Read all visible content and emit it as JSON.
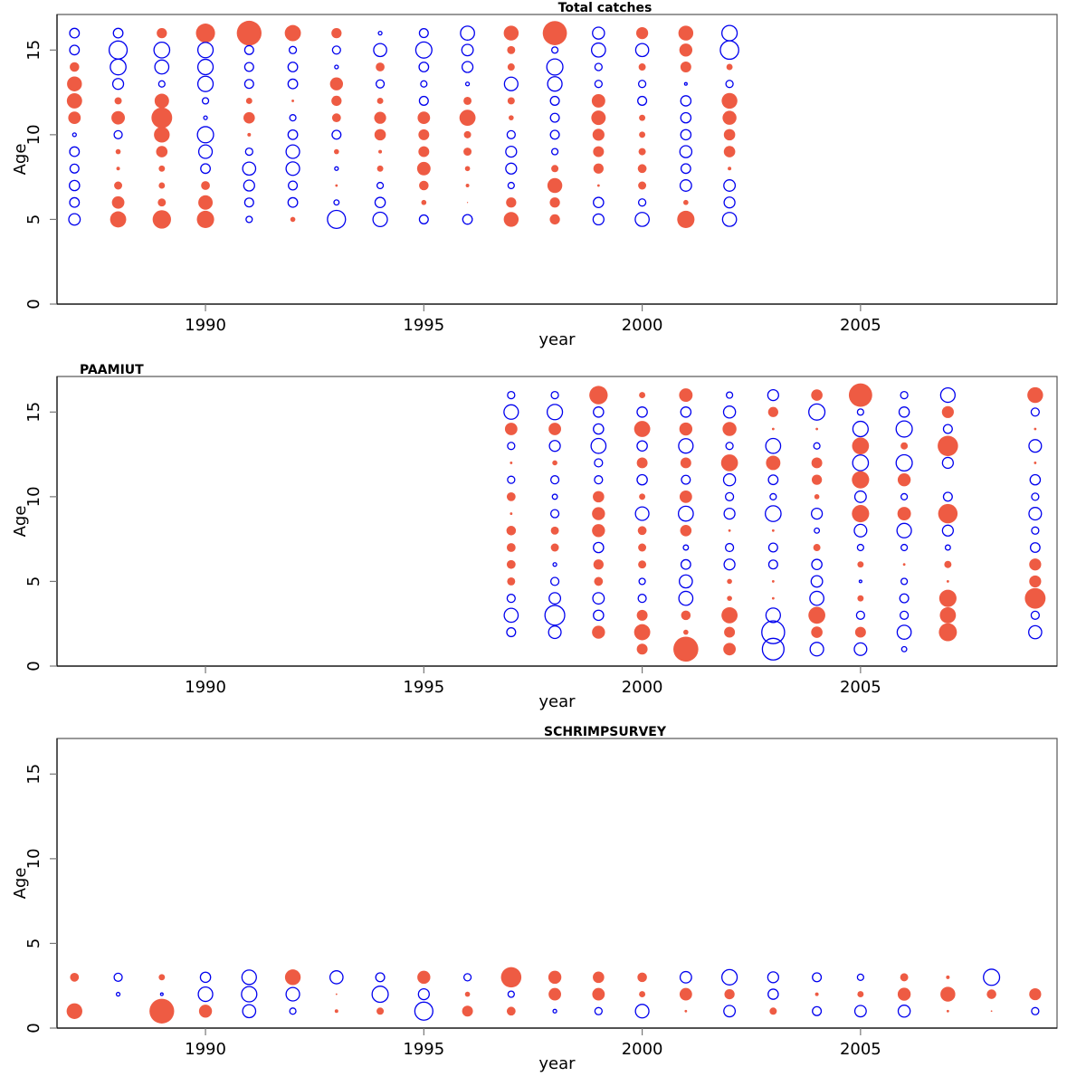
{
  "colors": {
    "positive": "#0000ee",
    "negative": "#ee5b43"
  },
  "chart_data": [
    {
      "type": "scatter",
      "subtype": "bubble",
      "title": "Total catches",
      "title_align": "center",
      "xlabel": "year",
      "ylabel": "Age",
      "xlim": [
        1986.6,
        2009.5
      ],
      "ylim": [
        0,
        17.1
      ],
      "xticks": [
        1990,
        1995,
        2000,
        2005
      ],
      "yticks": [
        0,
        5,
        10,
        15
      ],
      "legend": "none",
      "encoding": "blue open circle = positive residual, red filled circle = negative residual; area proportional to |residual|",
      "ages": [
        16,
        15,
        14,
        13,
        12,
        11,
        10,
        9,
        8,
        7,
        6,
        5
      ],
      "years": [
        1987,
        1988,
        1989,
        1990,
        1991,
        1992,
        1993,
        1994,
        1995,
        1996,
        1997,
        1998,
        1999,
        2000,
        2001,
        2002
      ],
      "residuals": [
        [
          0.7,
          0.7,
          -0.7,
          -1.7,
          -1.8,
          -1.2,
          0.1,
          0.7,
          0.6,
          0.8,
          0.7,
          1.0
        ],
        [
          0.7,
          2.5,
          1.9,
          0.9,
          -0.4,
          -1.4,
          0.5,
          -0.2,
          -0.1,
          -0.5,
          -1.2,
          -2.0
        ],
        [
          -0.8,
          1.9,
          1.5,
          0.3,
          -1.6,
          -3.3,
          -1.9,
          -1.0,
          -0.3,
          -0.3,
          -0.5,
          -2.6
        ],
        [
          -2.8,
          1.8,
          1.8,
          1.8,
          0.3,
          0.1,
          2.0,
          1.4,
          0.7,
          -0.6,
          -1.6,
          -2.3
        ],
        [
          -4.7,
          0.6,
          0.6,
          0.6,
          -0.3,
          -1.0,
          -0.1,
          0.4,
          1.3,
          0.9,
          0.6,
          0.3
        ],
        [
          -2.0,
          0.4,
          0.7,
          0.7,
          -0.05,
          0.3,
          0.7,
          1.4,
          1.4,
          0.6,
          0.7,
          -0.2
        ],
        [
          -0.8,
          0.5,
          0.1,
          -1.3,
          -0.8,
          -0.6,
          0.6,
          -0.2,
          0.1,
          -0.05,
          0.2,
          2.5
        ],
        [
          0.1,
          1.3,
          -0.6,
          0.5,
          -0.3,
          -1.1,
          -1.0,
          -0.1,
          -0.3,
          0.3,
          0.8,
          1.6
        ],
        [
          0.6,
          2.0,
          0.7,
          0.3,
          0.6,
          -1.2,
          -0.9,
          -0.9,
          -1.4,
          -0.7,
          -0.2,
          0.6
        ],
        [
          1.5,
          1.0,
          0.9,
          0.1,
          -0.5,
          -2.0,
          -0.4,
          -0.5,
          -0.2,
          -0.1,
          -0.01,
          0.7
        ],
        [
          -1.7,
          -0.5,
          -0.4,
          1.4,
          -0.4,
          -0.2,
          0.5,
          0.9,
          0.9,
          0.3,
          -0.8,
          -1.7
        ],
        [
          -4.5,
          0.3,
          2.0,
          1.6,
          0.6,
          0.6,
          0.6,
          0.3,
          -0.4,
          -1.7,
          -0.8,
          -0.8
        ],
        [
          1.1,
          1.5,
          0.4,
          0.4,
          -1.4,
          -1.6,
          -1.1,
          -0.9,
          -0.8,
          -0.05,
          0.8,
          0.9
        ],
        [
          -1.1,
          1.3,
          -0.4,
          0.4,
          0.6,
          -0.3,
          -0.3,
          -0.4,
          -0.6,
          -0.5,
          0.4,
          1.5
        ],
        [
          -1.7,
          -1.3,
          -0.9,
          0.05,
          0.8,
          0.8,
          0.8,
          1.1,
          0.7,
          1.0,
          -0.2,
          -2.3
        ],
        [
          1.8,
          2.6,
          -0.3,
          0.4,
          -1.9,
          -1.5,
          -1.0,
          -1.0,
          -0.1,
          1.0,
          0.9,
          1.5
        ]
      ]
    },
    {
      "type": "scatter",
      "subtype": "bubble",
      "title": "PAAMIUT",
      "title_align": "left",
      "xlabel": "year",
      "ylabel": "Age",
      "xlim": [
        1986.6,
        2009.5
      ],
      "ylim": [
        0,
        17.1
      ],
      "xticks": [
        1990,
        1995,
        2000,
        2005
      ],
      "yticks": [
        0,
        5,
        10,
        15
      ],
      "legend": "none",
      "encoding": "blue open circle = positive residual, red filled circle = negative residual; area proportional to |residual|",
      "ages": [
        16,
        15,
        14,
        13,
        12,
        11,
        10,
        9,
        8,
        7,
        6,
        5,
        4,
        3,
        2,
        1
      ],
      "years": [
        1997,
        1998,
        1999,
        2000,
        2001,
        2002,
        2003,
        2004,
        2005,
        2006,
        2007,
        2009
      ],
      "residuals": [
        [
          0.4,
          1.6,
          -1.2,
          0.4,
          -0.05,
          0.4,
          -0.6,
          -0.05,
          -0.7,
          -0.6,
          -0.6,
          -0.5,
          0.5,
          1.5,
          0.6,
          null
        ],
        [
          0.4,
          1.8,
          -1.2,
          0.9,
          -0.2,
          0.5,
          0.2,
          0.5,
          -0.5,
          -0.5,
          0.1,
          0.5,
          1.0,
          3.0,
          1.2,
          null
        ],
        [
          -2.6,
          0.8,
          0.8,
          1.7,
          0.5,
          0.5,
          -1.0,
          -1.3,
          -1.3,
          0.8,
          -0.8,
          -0.6,
          1.0,
          0.8,
          -1.3,
          null
        ],
        [
          -0.3,
          0.8,
          -2.0,
          0.8,
          -0.9,
          0.8,
          -0.3,
          1.4,
          -0.6,
          -0.5,
          -0.5,
          0.3,
          0.5,
          -0.9,
          -2.0,
          -0.9
        ],
        [
          -1.4,
          0.8,
          -1.3,
          1.6,
          -0.9,
          0.6,
          -1.2,
          1.7,
          -1.0,
          0.2,
          0.7,
          1.3,
          1.5,
          -0.7,
          -0.2,
          -4.8
        ],
        [
          0.3,
          1.1,
          -1.5,
          0.4,
          -2.2,
          1.1,
          0.5,
          0.9,
          -0.05,
          0.5,
          0.9,
          -0.2,
          -0.2,
          -2.0,
          -0.9,
          -1.2
        ],
        [
          0.9,
          -0.8,
          -0.05,
          1.7,
          -1.6,
          0.7,
          0.3,
          1.9,
          -0.05,
          0.6,
          0.6,
          -0.05,
          -0.05,
          1.6,
          4.0,
          3.6
        ],
        [
          -1.0,
          2.0,
          -0.05,
          0.3,
          -0.9,
          -0.8,
          -0.2,
          0.9,
          0.2,
          -0.4,
          0.8,
          1.0,
          1.5,
          -2.2,
          -1.0,
          1.4
        ],
        [
          -4.2,
          0.3,
          1.8,
          -2.2,
          1.9,
          -2.3,
          1.0,
          -2.3,
          1.2,
          0.3,
          -0.3,
          0.05,
          -0.3,
          0.5,
          -0.9,
          1.2
        ],
        [
          0.4,
          0.8,
          2.0,
          -0.4,
          2.0,
          -1.3,
          0.3,
          -1.4,
          1.6,
          0.3,
          -0.05,
          0.3,
          0.6,
          0.5,
          1.5,
          0.2
        ],
        [
          1.6,
          -1.1,
          0.6,
          -3.2,
          0.9,
          null,
          0.6,
          -2.9,
          0.9,
          0.2,
          -0.4,
          -0.05,
          -2.3,
          -2.0,
          -2.5,
          null
        ],
        [
          -1.9,
          0.5,
          -0.05,
          1.2,
          -0.05,
          0.8,
          0.4,
          1.2,
          0.4,
          0.7,
          -1.1,
          -1.1,
          -3.3,
          0.5,
          1.3,
          null
        ]
      ]
    },
    {
      "type": "scatter",
      "subtype": "bubble",
      "title": "SCHRIMPSURVEY",
      "title_align": "center",
      "xlabel": "year",
      "ylabel": "Age",
      "xlim": [
        1986.6,
        2009.5
      ],
      "ylim": [
        0,
        17.1
      ],
      "xticks": [
        1990,
        1995,
        2000,
        2005
      ],
      "yticks": [
        0,
        5,
        10,
        15
      ],
      "legend": "none",
      "encoding": "blue open circle = positive residual, red filled circle = negative residual; area proportional to |residual|",
      "ages": [
        3,
        2,
        1
      ],
      "years": [
        1987,
        1988,
        1989,
        1990,
        1991,
        1992,
        1993,
        1994,
        1995,
        1996,
        1997,
        1998,
        1999,
        2000,
        2001,
        2002,
        2003,
        2004,
        2005,
        2006,
        2007,
        2008,
        2009
      ],
      "residuals": [
        [
          -0.6,
          null,
          -1.9
        ],
        [
          0.5,
          0.1,
          null
        ],
        [
          -0.3,
          0.05,
          -4.7
        ],
        [
          0.8,
          1.6,
          -1.3
        ],
        [
          1.6,
          1.8,
          1.3
        ],
        [
          -1.9,
          1.4,
          0.3
        ],
        [
          1.3,
          -0.02,
          -0.1
        ],
        [
          0.6,
          2.0,
          -0.4
        ],
        [
          -1.3,
          0.9,
          2.5
        ],
        [
          0.4,
          -0.2,
          -0.9
        ],
        [
          -3.2,
          0.3,
          -0.6
        ],
        [
          -1.3,
          -1.2,
          0.1
        ],
        [
          -1.0,
          -1.2,
          0.4
        ],
        [
          -0.7,
          -0.3,
          1.4
        ],
        [
          1.0,
          -1.2,
          -0.05
        ],
        [
          1.8,
          -0.8,
          1.0
        ],
        [
          0.9,
          0.8,
          -0.4
        ],
        [
          0.6,
          -0.1,
          0.6
        ],
        [
          0.3,
          -0.3,
          1.0
        ],
        [
          -0.5,
          -1.3,
          1.1
        ],
        [
          -0.1,
          -1.7,
          -0.05
        ],
        [
          2.0,
          -0.7,
          -0.02
        ],
        [
          null,
          -1.1,
          0.4
        ]
      ]
    }
  ]
}
